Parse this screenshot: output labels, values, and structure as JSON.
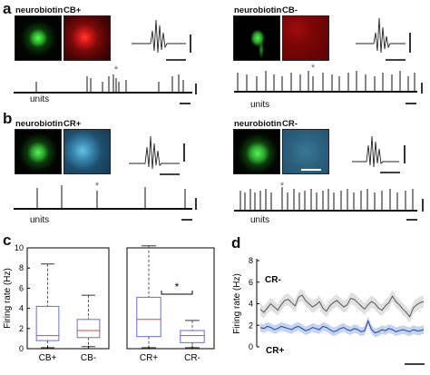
{
  "panels": {
    "a": {
      "letter": "a",
      "left": {
        "stain": "neurobiotin",
        "marker": "CB+",
        "units": "units"
      },
      "right": {
        "stain": "neurobiotin",
        "marker": "CB-",
        "units": "units"
      }
    },
    "b": {
      "letter": "b",
      "left": {
        "stain": "neurobiotin",
        "marker": "CR+",
        "units": "units"
      },
      "right": {
        "stain": "neurobiotin",
        "marker": "CR-",
        "units": "units"
      }
    },
    "c": {
      "letter": "c"
    },
    "d": {
      "letter": "d"
    }
  },
  "colors": {
    "green": "#3ad23a",
    "red": "#c8141a",
    "cyan": "#5aa4c8",
    "box": "#6a6ad8",
    "median": "#e04040",
    "cr_minus_line": "#555555",
    "cr_plus_line": "#2a3aa8"
  },
  "chart_data": [
    {
      "type": "box",
      "categories": [
        "CB+",
        "CB-"
      ],
      "ylabel": "Firing rate (Hz)",
      "yticks": [
        0,
        2,
        4,
        6,
        8,
        10
      ],
      "ylim": [
        0,
        10
      ],
      "boxes": [
        {
          "name": "CB+",
          "min": 0.1,
          "q1": 0.8,
          "median": 1.3,
          "q3": 4.2,
          "max": 8.4
        },
        {
          "name": "CB-",
          "min": 0.2,
          "q1": 1.1,
          "median": 1.8,
          "q3": 2.9,
          "max": 5.3
        }
      ]
    },
    {
      "type": "box",
      "categories": [
        "CR+",
        "CR-"
      ],
      "ylim": [
        0,
        10
      ],
      "significance": "*",
      "boxes": [
        {
          "name": "CR+",
          "min": 0.1,
          "q1": 1.2,
          "median": 2.9,
          "q3": 5.1,
          "max": 10.2
        },
        {
          "name": "CR-",
          "min": 0.1,
          "q1": 0.6,
          "median": 1.3,
          "q3": 1.8,
          "max": 2.8
        }
      ]
    },
    {
      "type": "line",
      "ylabel": "Firing rate (Hz)",
      "yticks": [
        0,
        2,
        4,
        6,
        8
      ],
      "ylim": [
        0,
        8
      ],
      "series": [
        {
          "name": "CR-",
          "values": [
            3.5,
            3.2,
            3.6,
            4.0,
            3.7,
            3.4,
            3.9,
            4.3,
            4.4,
            4.1,
            3.8,
            4.6,
            4.8,
            4.3,
            4.0,
            3.7,
            3.9,
            4.2,
            3.6,
            3.3,
            3.8,
            4.1,
            4.3,
            4.0,
            3.7,
            3.9,
            4.5,
            4.4,
            4.1,
            3.8,
            3.5,
            3.9,
            4.2,
            4.0,
            3.6,
            3.4,
            3.8,
            4.1,
            4.7,
            4.2,
            3.9,
            3.5,
            3.2,
            2.8,
            3.6,
            3.9,
            4.1,
            4.2
          ]
        },
        {
          "name": "CR+",
          "values": [
            1.8,
            1.7,
            1.9,
            1.8,
            1.6,
            1.7,
            1.9,
            1.8,
            1.7,
            1.6,
            1.8,
            1.9,
            1.7,
            1.5,
            1.6,
            1.8,
            1.7,
            1.6,
            1.9,
            1.8,
            1.6,
            1.4,
            1.5,
            1.7,
            1.8,
            1.6,
            1.5,
            1.7,
            1.6,
            1.4,
            1.5,
            2.4,
            1.6,
            1.3,
            1.4,
            1.6,
            1.5,
            1.7,
            1.6,
            1.4,
            1.5,
            1.6,
            1.5,
            1.4,
            1.6,
            1.5,
            1.5,
            1.6
          ]
        }
      ]
    }
  ]
}
